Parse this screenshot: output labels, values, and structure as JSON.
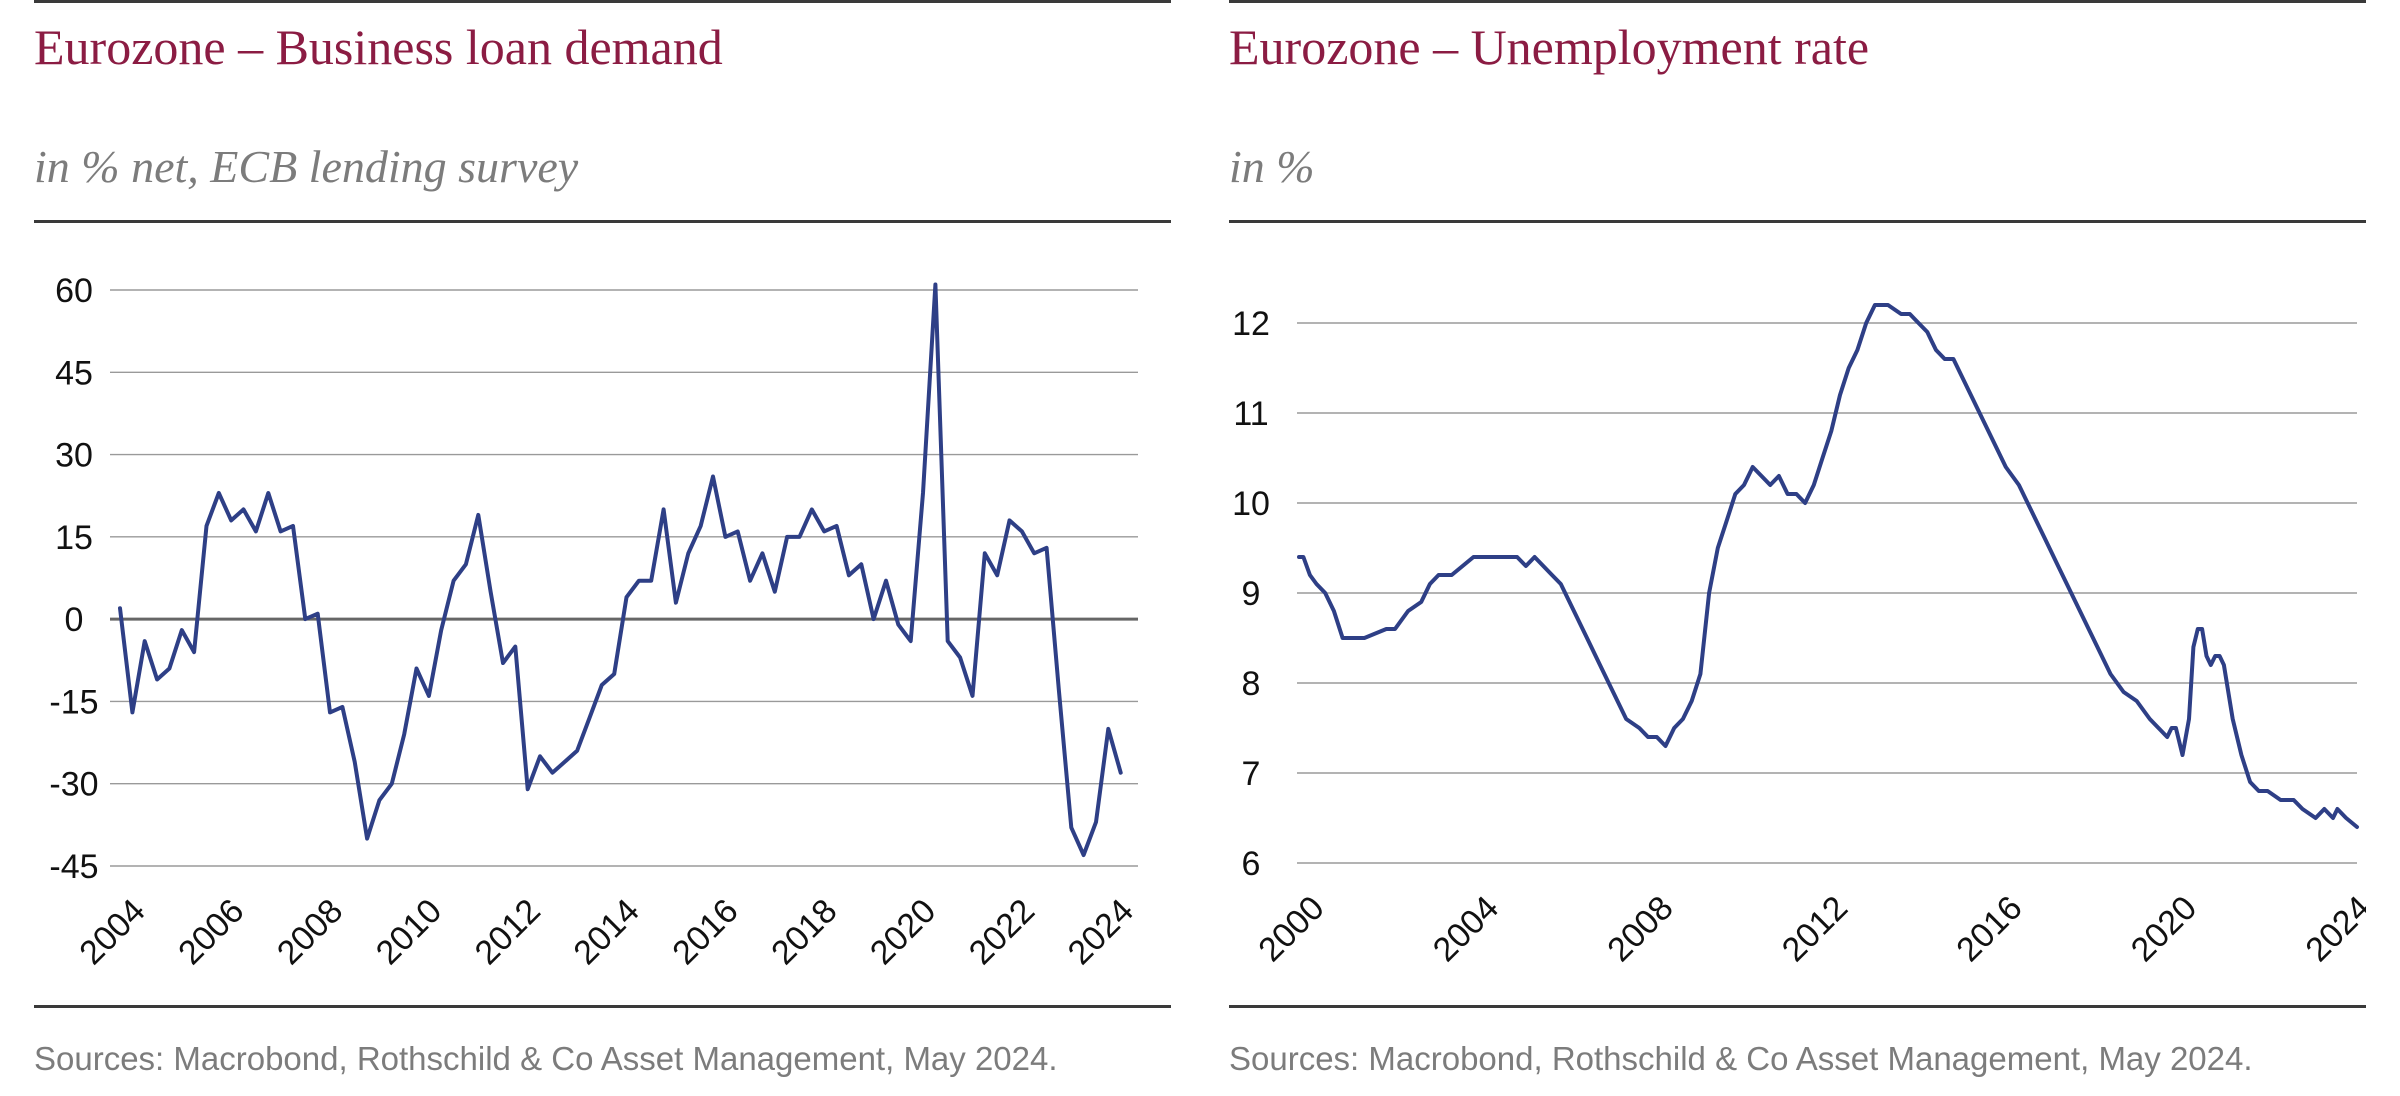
{
  "colors": {
    "title": "#8b1c43",
    "line": "#2e3f86",
    "grid": "#9a9a9a",
    "zero_line": "#666666",
    "text_grey": "#7c7c7c"
  },
  "left": {
    "title": "Eurozone – Business loan demand",
    "subtitle": "in % net, ECB lending survey",
    "source": "Sources: Macrobond, Rothschild & Co Asset Management, May 2024."
  },
  "right": {
    "title": "Eurozone – Unemployment rate",
    "subtitle": "in %",
    "source": "Sources: Macrobond, Rothschild & Co Asset Management, May 2024."
  },
  "chart_data": [
    {
      "type": "line",
      "title": "Eurozone – Business loan demand",
      "subtitle": "in % net, ECB lending survey",
      "xlabel": "",
      "ylabel": "",
      "xlim": [
        2004.0,
        2024.6
      ],
      "ylim": [
        -45,
        60
      ],
      "yticks": [
        60,
        45,
        30,
        15,
        0,
        -15,
        -30,
        -45
      ],
      "xticks": [
        2004,
        2006,
        2008,
        2010,
        2012,
        2014,
        2016,
        2018,
        2020,
        2022,
        2024
      ],
      "grid": true,
      "zero_line": true,
      "series": [
        {
          "x": [
            2004.0,
            2004.25,
            2004.5,
            2004.75,
            2005.0,
            2005.25,
            2005.5,
            2005.75,
            2006.0,
            2006.25,
            2006.5,
            2006.75,
            2007.0,
            2007.25,
            2007.5,
            2007.75,
            2008.0,
            2008.25,
            2008.5,
            2008.75,
            2009.0,
            2009.25,
            2009.5,
            2009.75,
            2010.0,
            2010.25,
            2010.5,
            2010.75,
            2011.0,
            2011.25,
            2011.5,
            2011.75,
            2012.0,
            2012.25,
            2012.5,
            2012.75,
            2013.0,
            2013.25,
            2013.5,
            2013.75,
            2014.0,
            2014.25,
            2014.5,
            2014.75,
            2015.0,
            2015.25,
            2015.5,
            2015.75,
            2016.0,
            2016.25,
            2016.5,
            2016.75,
            2017.0,
            2017.25,
            2017.5,
            2017.75,
            2018.0,
            2018.25,
            2018.5,
            2018.75,
            2019.0,
            2019.25,
            2019.5,
            2019.75,
            2020.0,
            2020.25,
            2020.5,
            2020.75,
            2021.0,
            2021.25,
            2021.5,
            2021.75,
            2022.0,
            2022.25,
            2022.5,
            2022.75,
            2023.0,
            2023.25,
            2023.5,
            2023.75,
            2024.0,
            2024.25
          ],
          "values": [
            2,
            -17,
            -4,
            -11,
            -9,
            -2,
            -6,
            17,
            23,
            18,
            20,
            16,
            23,
            16,
            17,
            0,
            1,
            -17,
            -16,
            -26,
            -40,
            -33,
            -30,
            -21,
            -9,
            -14,
            -2,
            7,
            10,
            19,
            5,
            -8,
            -5,
            -31,
            -25,
            -28,
            -26,
            -24,
            -18,
            -12,
            -10,
            4,
            7,
            7,
            20,
            3,
            12,
            17,
            26,
            15,
            16,
            7,
            12,
            5,
            15,
            15,
            20,
            16,
            17,
            8,
            10,
            0,
            7,
            -1,
            -4,
            23,
            61,
            -4,
            -7,
            -14,
            12,
            8,
            18,
            16,
            12,
            13,
            -13,
            -38,
            -43,
            -37,
            -20,
            -28
          ]
        }
      ]
    },
    {
      "type": "line",
      "title": "Eurozone – Unemployment rate",
      "subtitle": "in %",
      "xlabel": "",
      "ylabel": "",
      "xlim": [
        2000.0,
        2024.25
      ],
      "ylim": [
        6,
        12.4
      ],
      "yticks": [
        12,
        11,
        10,
        9,
        8,
        7,
        6
      ],
      "xticks": [
        2000,
        2004,
        2008,
        2012,
        2016,
        2020,
        2024
      ],
      "grid": true,
      "series": [
        {
          "x": [
            2000.0,
            2000.1,
            2000.25,
            2000.4,
            2000.6,
            2000.8,
            2001.0,
            2001.2,
            2001.5,
            2002.0,
            2002.2,
            2002.5,
            2002.8,
            2003.0,
            2003.2,
            2003.5,
            2004.0,
            2004.2,
            2004.5,
            2005.0,
            2005.2,
            2005.4,
            2005.6,
            2005.8,
            2006.0,
            2006.3,
            2006.6,
            2006.9,
            2007.2,
            2007.5,
            2007.8,
            2008.0,
            2008.2,
            2008.4,
            2008.6,
            2008.8,
            2009.0,
            2009.2,
            2009.4,
            2009.6,
            2009.8,
            2010.0,
            2010.2,
            2010.4,
            2010.6,
            2010.8,
            2011.0,
            2011.2,
            2011.4,
            2011.6,
            2011.8,
            2012.0,
            2012.2,
            2012.4,
            2012.6,
            2012.8,
            2013.0,
            2013.2,
            2013.5,
            2013.8,
            2014.0,
            2014.2,
            2014.4,
            2014.5,
            2014.6,
            2014.8,
            2015.0,
            2015.3,
            2015.6,
            2015.9,
            2016.2,
            2016.5,
            2016.8,
            2017.1,
            2017.4,
            2017.7,
            2018.0,
            2018.3,
            2018.6,
            2018.9,
            2019.2,
            2019.5,
            2019.7,
            2019.9,
            2020.0,
            2020.1,
            2020.25,
            2020.4,
            2020.5,
            2020.6,
            2020.7,
            2020.8,
            2020.9,
            2021.0,
            2021.1,
            2021.2,
            2021.4,
            2021.6,
            2021.8,
            2022.0,
            2022.2,
            2022.5,
            2022.8,
            2023.0,
            2023.3,
            2023.5,
            2023.7,
            2023.8,
            2024.0,
            2024.25
          ],
          "values": [
            9.4,
            9.4,
            9.2,
            9.1,
            9.0,
            8.8,
            8.5,
            8.5,
            8.5,
            8.6,
            8.6,
            8.8,
            8.9,
            9.1,
            9.2,
            9.2,
            9.4,
            9.4,
            9.4,
            9.4,
            9.3,
            9.4,
            9.3,
            9.2,
            9.1,
            8.8,
            8.5,
            8.2,
            7.9,
            7.6,
            7.5,
            7.4,
            7.4,
            7.3,
            7.5,
            7.6,
            7.8,
            8.1,
            9.0,
            9.5,
            9.8,
            10.1,
            10.2,
            10.4,
            10.3,
            10.2,
            10.3,
            10.1,
            10.1,
            10.0,
            10.2,
            10.5,
            10.8,
            11.2,
            11.5,
            11.7,
            12.0,
            12.2,
            12.2,
            12.1,
            12.1,
            12.0,
            11.9,
            11.8,
            11.7,
            11.6,
            11.6,
            11.3,
            11.0,
            10.7,
            10.4,
            10.2,
            9.9,
            9.6,
            9.3,
            9.0,
            8.7,
            8.4,
            8.1,
            7.9,
            7.8,
            7.6,
            7.5,
            7.4,
            7.5,
            7.5,
            7.2,
            7.6,
            8.4,
            8.6,
            8.6,
            8.3,
            8.2,
            8.3,
            8.3,
            8.2,
            7.6,
            7.2,
            6.9,
            6.8,
            6.8,
            6.7,
            6.7,
            6.6,
            6.5,
            6.6,
            6.5,
            6.6,
            6.5,
            6.4
          ]
        }
      ]
    }
  ]
}
